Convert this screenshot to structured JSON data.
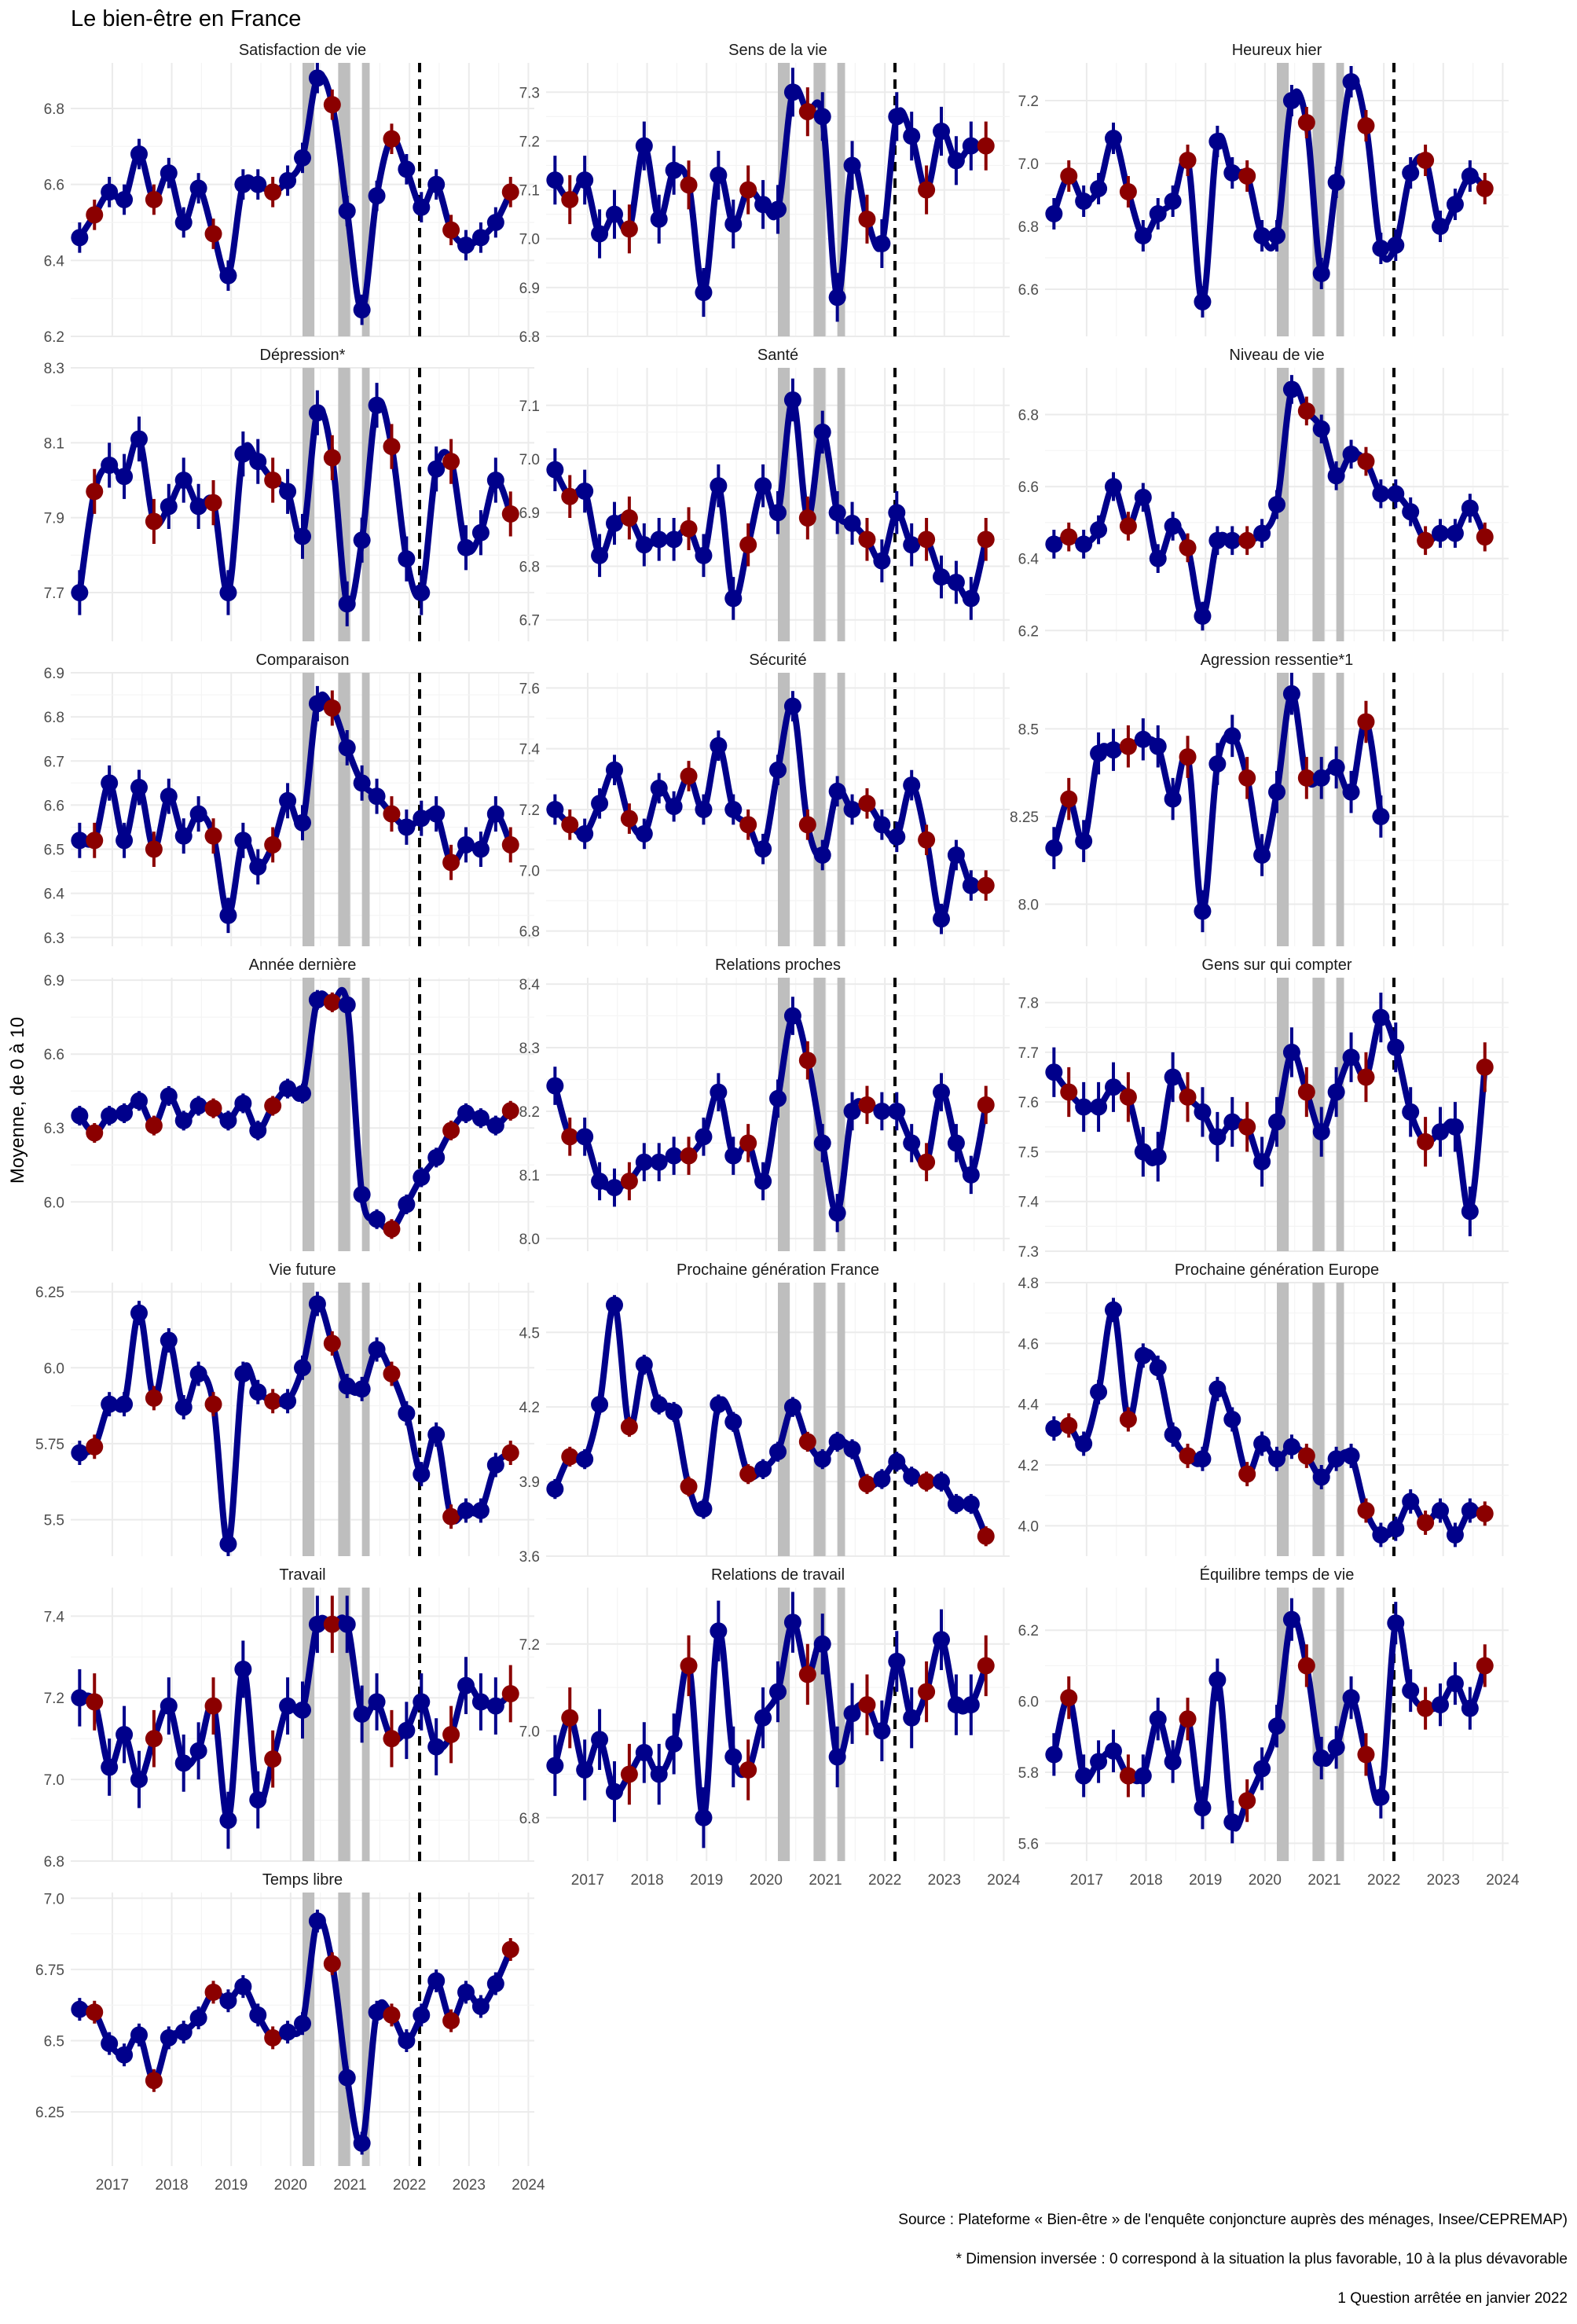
{
  "title": "Le bien-être en France",
  "ylabel": "Moyenne, de 0 à 10",
  "footnotes": [
    "Source : Plateforme « Bien-être » de l'enquête conjoncture auprès des ménages, Insee/CEPREMAP)",
    "* Dimension inversée : 0 correspond à la situation la plus favorable, 10 à la plus dévavorable",
    "1 Question arrêtée en janvier 2022"
  ],
  "colors": {
    "series": "#00008B",
    "highlight": "#8B0000",
    "shade": "#BEBEBE",
    "grid": "#EBEBEB"
  },
  "chart_data": {
    "type": "line",
    "x_ticks": [
      2017,
      2018,
      2019,
      2020,
      2021,
      2022,
      2023,
      2024
    ],
    "xlim": [
      2016.3,
      2024.1
    ],
    "shaded_periods": [
      [
        2020.2,
        2020.4
      ],
      [
        2020.8,
        2021.0
      ],
      [
        2021.2,
        2021.33
      ]
    ],
    "vline": 2022.17,
    "x": [
      2016.45,
      2016.7,
      2016.95,
      2017.2,
      2017.45,
      2017.7,
      2017.95,
      2018.2,
      2018.45,
      2018.7,
      2018.95,
      2019.2,
      2019.45,
      2019.7,
      2019.95,
      2020.2,
      2020.45,
      2020.7,
      2020.95,
      2021.2,
      2021.45,
      2021.7,
      2021.95,
      2022.2,
      2022.45,
      2022.7,
      2022.95,
      2023.2,
      2023.45,
      2023.7
    ],
    "highlight_every": 4,
    "highlight_offset": 1,
    "panels": [
      {
        "title": "Satisfaction de vie",
        "ylim": [
          6.2,
          6.92
        ],
        "yticks": [
          6.2,
          6.4,
          6.6,
          6.8
        ],
        "ci": 0.04,
        "values": [
          6.46,
          6.52,
          6.58,
          6.56,
          6.68,
          6.56,
          6.63,
          6.5,
          6.59,
          6.47,
          6.36,
          6.6,
          6.6,
          6.58,
          6.61,
          6.67,
          6.88,
          6.81,
          6.53,
          6.27,
          6.57,
          6.72,
          6.64,
          6.54,
          6.6,
          6.48,
          6.44,
          6.46,
          6.5,
          6.58
        ]
      },
      {
        "title": "Sens de la vie",
        "ylim": [
          6.8,
          7.36
        ],
        "yticks": [
          6.8,
          6.9,
          7.0,
          7.1,
          7.2,
          7.3
        ],
        "ci": 0.05,
        "values": [
          7.12,
          7.08,
          7.12,
          7.01,
          7.05,
          7.02,
          7.19,
          7.04,
          7.14,
          7.11,
          6.89,
          7.13,
          7.03,
          7.1,
          7.07,
          7.06,
          7.3,
          7.26,
          7.25,
          6.88,
          7.15,
          7.04,
          6.99,
          7.25,
          7.21,
          7.1,
          7.22,
          7.16,
          7.19,
          7.19
        ]
      },
      {
        "title": "Heureux hier",
        "ylim": [
          6.45,
          7.32
        ],
        "yticks": [
          6.6,
          6.8,
          7.0,
          7.2
        ],
        "ci": 0.05,
        "values": [
          6.84,
          6.96,
          6.88,
          6.92,
          7.08,
          6.91,
          6.77,
          6.84,
          6.88,
          7.01,
          6.56,
          7.07,
          6.97,
          6.96,
          6.77,
          6.77,
          7.2,
          7.13,
          6.65,
          6.94,
          7.26,
          7.12,
          6.73,
          6.74,
          6.97,
          7.01,
          6.8,
          6.87,
          6.96,
          6.92
        ]
      },
      {
        "title": "Dépression*",
        "ylim": [
          7.57,
          8.3
        ],
        "yticks": [
          7.7,
          7.9,
          8.1,
          8.3
        ],
        "ci": 0.06,
        "values": [
          7.7,
          7.97,
          8.04,
          8.01,
          8.11,
          7.89,
          7.93,
          8.0,
          7.93,
          7.94,
          7.7,
          8.07,
          8.05,
          8.0,
          7.97,
          7.85,
          8.18,
          8.06,
          7.67,
          7.84,
          8.2,
          8.09,
          7.79,
          7.7,
          8.03,
          8.05,
          7.82,
          7.86,
          8.0,
          7.91
        ]
      },
      {
        "title": "Santé",
        "ylim": [
          6.66,
          7.17
        ],
        "yticks": [
          6.7,
          6.8,
          6.9,
          7.0,
          7.1
        ],
        "ci": 0.04,
        "values": [
          6.98,
          6.93,
          6.94,
          6.82,
          6.88,
          6.89,
          6.84,
          6.85,
          6.85,
          6.87,
          6.82,
          6.95,
          6.74,
          6.84,
          6.95,
          6.9,
          7.11,
          6.89,
          7.05,
          6.9,
          6.88,
          6.85,
          6.81,
          6.9,
          6.84,
          6.85,
          6.78,
          6.77,
          6.74,
          6.85
        ]
      },
      {
        "title": "Niveau de vie",
        "ylim": [
          6.17,
          6.93
        ],
        "yticks": [
          6.2,
          6.4,
          6.6,
          6.8
        ],
        "ci": 0.04,
        "values": [
          6.44,
          6.46,
          6.44,
          6.48,
          6.6,
          6.49,
          6.57,
          6.4,
          6.49,
          6.43,
          6.24,
          6.45,
          6.45,
          6.45,
          6.47,
          6.55,
          6.87,
          6.81,
          6.76,
          6.63,
          6.69,
          6.67,
          6.58,
          6.58,
          6.53,
          6.45,
          6.47,
          6.47,
          6.54,
          6.46
        ]
      },
      {
        "title": "Comparaison",
        "ylim": [
          6.28,
          6.9
        ],
        "yticks": [
          6.3,
          6.4,
          6.5,
          6.6,
          6.7,
          6.8,
          6.9
        ],
        "ci": 0.04,
        "values": [
          6.52,
          6.52,
          6.65,
          6.52,
          6.64,
          6.5,
          6.62,
          6.53,
          6.58,
          6.53,
          6.35,
          6.52,
          6.46,
          6.51,
          6.61,
          6.56,
          6.83,
          6.82,
          6.73,
          6.65,
          6.62,
          6.58,
          6.55,
          6.57,
          6.58,
          6.47,
          6.51,
          6.5,
          6.58,
          6.51
        ]
      },
      {
        "title": "Sécurité",
        "ylim": [
          6.75,
          7.65
        ],
        "yticks": [
          6.8,
          7.0,
          7.2,
          7.4,
          7.6
        ],
        "ci": 0.05,
        "values": [
          7.2,
          7.15,
          7.12,
          7.22,
          7.33,
          7.17,
          7.12,
          7.27,
          7.21,
          7.31,
          7.2,
          7.41,
          7.2,
          7.15,
          7.07,
          7.33,
          7.54,
          7.15,
          7.05,
          7.26,
          7.2,
          7.22,
          7.15,
          7.11,
          7.28,
          7.1,
          6.84,
          7.05,
          6.95,
          6.95
        ]
      },
      {
        "title": "Agression ressentie*1",
        "ylim": [
          7.88,
          8.66
        ],
        "yticks": [
          8.0,
          8.25,
          8.5
        ],
        "ci": 0.06,
        "values": [
          8.16,
          8.3,
          8.18,
          8.43,
          8.44,
          8.45,
          8.47,
          8.45,
          8.3,
          8.42,
          7.98,
          8.4,
          8.48,
          8.36,
          8.14,
          8.32,
          8.6,
          8.36,
          8.36,
          8.39,
          8.32,
          8.52,
          8.25
        ]
      },
      {
        "title": "Année dernière",
        "ylim": [
          5.8,
          6.91
        ],
        "yticks": [
          6.0,
          6.3,
          6.6,
          6.9
        ],
        "ci": 0.04,
        "values": [
          6.35,
          6.28,
          6.35,
          6.36,
          6.41,
          6.31,
          6.43,
          6.33,
          6.39,
          6.38,
          6.33,
          6.4,
          6.29,
          6.39,
          6.46,
          6.44,
          6.82,
          6.81,
          6.8,
          6.03,
          5.93,
          5.89,
          5.99,
          6.1,
          6.18,
          6.29,
          6.36,
          6.34,
          6.31,
          6.37
        ]
      },
      {
        "title": "Relations proches",
        "ylim": [
          7.98,
          8.41
        ],
        "yticks": [
          8.0,
          8.1,
          8.2,
          8.3,
          8.4
        ],
        "ci": 0.03,
        "values": [
          8.24,
          8.16,
          8.16,
          8.09,
          8.08,
          8.09,
          8.12,
          8.12,
          8.13,
          8.13,
          8.16,
          8.23,
          8.13,
          8.15,
          8.09,
          8.22,
          8.35,
          8.28,
          8.15,
          8.04,
          8.2,
          8.21,
          8.2,
          8.2,
          8.15,
          8.12,
          8.23,
          8.15,
          8.1,
          8.21
        ]
      },
      {
        "title": "Gens sur qui compter",
        "ylim": [
          7.3,
          7.85
        ],
        "yticks": [
          7.3,
          7.4,
          7.5,
          7.6,
          7.7,
          7.8
        ],
        "ci": 0.05,
        "values": [
          7.66,
          7.62,
          7.59,
          7.59,
          7.63,
          7.61,
          7.5,
          7.49,
          7.65,
          7.61,
          7.58,
          7.53,
          7.56,
          7.55,
          7.48,
          7.56,
          7.7,
          7.62,
          7.54,
          7.62,
          7.69,
          7.65,
          7.77,
          7.71,
          7.58,
          7.52,
          7.54,
          7.55,
          7.38,
          7.67
        ]
      },
      {
        "title": "Vie future",
        "ylim": [
          5.38,
          6.28
        ],
        "yticks": [
          5.5,
          5.75,
          6.0,
          6.25
        ],
        "ci": 0.04,
        "values": [
          5.72,
          5.74,
          5.88,
          5.88,
          6.18,
          5.9,
          6.09,
          5.87,
          5.98,
          5.88,
          5.42,
          5.98,
          5.92,
          5.89,
          5.89,
          6.0,
          6.21,
          6.08,
          5.94,
          5.93,
          6.06,
          5.98,
          5.85,
          5.65,
          5.78,
          5.51,
          5.53,
          5.53,
          5.68,
          5.72
        ]
      },
      {
        "title": "Prochaine génération France",
        "ylim": [
          3.6,
          4.7
        ],
        "yticks": [
          3.6,
          3.9,
          4.2,
          4.5
        ],
        "ci": 0.04,
        "values": [
          3.87,
          4.0,
          3.99,
          4.21,
          4.61,
          4.12,
          4.37,
          4.21,
          4.18,
          3.88,
          3.79,
          4.21,
          4.14,
          3.93,
          3.95,
          4.02,
          4.2,
          4.06,
          3.99,
          4.06,
          4.03,
          3.89,
          3.91,
          3.98,
          3.92,
          3.9,
          3.9,
          3.81,
          3.81,
          3.68
        ]
      },
      {
        "title": "Prochaine génération Europe",
        "ylim": [
          3.9,
          4.8
        ],
        "yticks": [
          4.0,
          4.2,
          4.4,
          4.6,
          4.8
        ],
        "ci": 0.04,
        "values": [
          4.32,
          4.33,
          4.27,
          4.44,
          4.71,
          4.35,
          4.56,
          4.52,
          4.3,
          4.23,
          4.22,
          4.45,
          4.35,
          4.17,
          4.27,
          4.22,
          4.26,
          4.23,
          4.16,
          4.22,
          4.23,
          4.05,
          3.97,
          3.99,
          4.08,
          4.01,
          4.05,
          3.97,
          4.05,
          4.04
        ]
      },
      {
        "title": "Travail",
        "ylim": [
          6.8,
          7.47
        ],
        "yticks": [
          6.8,
          7.0,
          7.2,
          7.4
        ],
        "ci": 0.07,
        "values": [
          7.2,
          7.19,
          7.03,
          7.11,
          7.0,
          7.1,
          7.18,
          7.04,
          7.07,
          7.18,
          6.9,
          7.27,
          6.95,
          7.05,
          7.18,
          7.17,
          7.38,
          7.38,
          7.38,
          7.16,
          7.19,
          7.1,
          7.12,
          7.19,
          7.08,
          7.11,
          7.23,
          7.19,
          7.18,
          7.21
        ]
      },
      {
        "title": "Relations de travail",
        "ylim": [
          6.7,
          7.33
        ],
        "yticks": [
          6.8,
          7.0,
          7.2
        ],
        "ci": 0.07,
        "values": [
          6.92,
          7.03,
          6.91,
          6.98,
          6.86,
          6.9,
          6.95,
          6.9,
          6.97,
          7.15,
          6.8,
          7.23,
          6.94,
          6.91,
          7.03,
          7.09,
          7.25,
          7.13,
          7.2,
          6.94,
          7.04,
          7.06,
          7.0,
          7.16,
          7.03,
          7.09,
          7.21,
          7.06,
          7.06,
          7.15
        ]
      },
      {
        "title": "Équilibre temps de vie",
        "ylim": [
          5.55,
          6.32
        ],
        "yticks": [
          5.6,
          5.8,
          6.0,
          6.2
        ],
        "ci": 0.06,
        "values": [
          5.85,
          6.01,
          5.79,
          5.83,
          5.86,
          5.79,
          5.79,
          5.95,
          5.83,
          5.95,
          5.7,
          6.06,
          5.66,
          5.72,
          5.81,
          5.93,
          6.23,
          6.1,
          5.84,
          5.87,
          6.01,
          5.85,
          5.73,
          6.22,
          6.03,
          5.98,
          5.99,
          6.05,
          5.98,
          6.1
        ]
      },
      {
        "title": "Temps libre",
        "ylim": [
          6.06,
          7.02
        ],
        "yticks": [
          6.25,
          6.5,
          6.75,
          7.0
        ],
        "ci": 0.04,
        "values": [
          6.61,
          6.6,
          6.49,
          6.45,
          6.52,
          6.36,
          6.51,
          6.53,
          6.58,
          6.67,
          6.64,
          6.69,
          6.59,
          6.51,
          6.53,
          6.56,
          6.92,
          6.77,
          6.37,
          6.14,
          6.6,
          6.59,
          6.5,
          6.59,
          6.71,
          6.57,
          6.67,
          6.62,
          6.7,
          6.82
        ]
      }
    ]
  }
}
